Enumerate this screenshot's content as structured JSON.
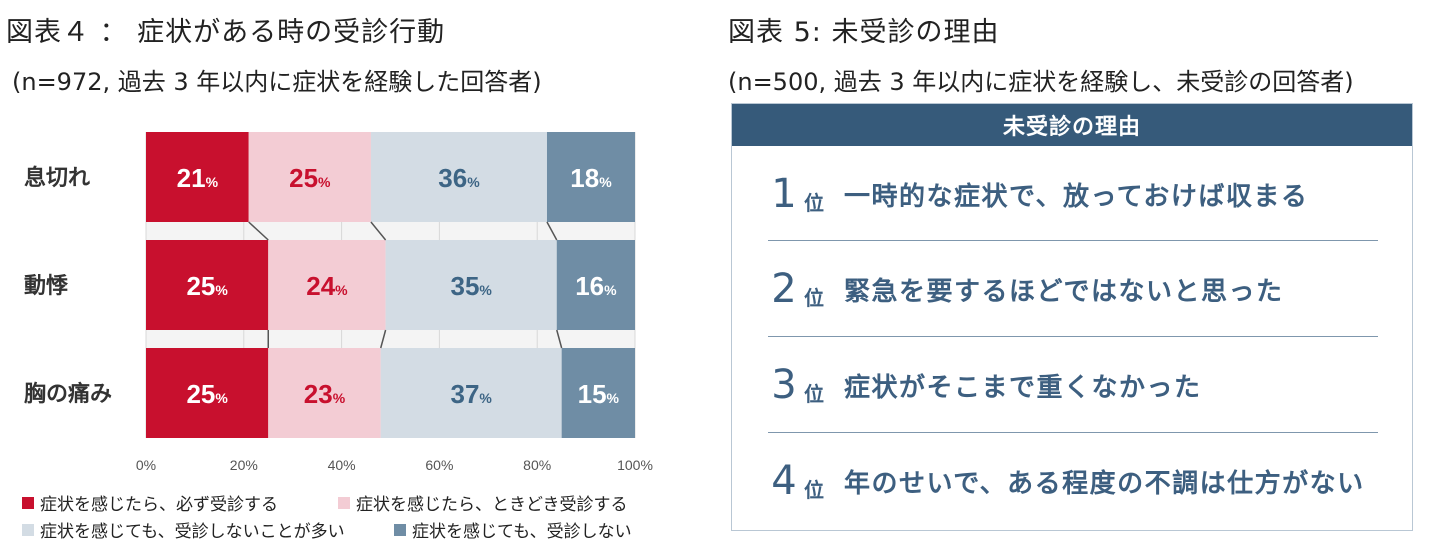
{
  "left": {
    "title": "図表４ ： 症状がある時の受診行動",
    "subtitle": "(n=972, 過去 3 年以内に症状を経験した回答者)"
  },
  "right": {
    "title": "図表 5: 未受診の理由",
    "subtitle": "(n=500, 過去 3 年以内に症状を経験し、未受診の回答者)",
    "table_header": "未受診の理由",
    "rank_unit": "位",
    "reasons": [
      {
        "rank": "1",
        "text": "一時的な症状で、放っておけば収まる"
      },
      {
        "rank": "2",
        "text": "緊急を要するほどではないと思った"
      },
      {
        "rank": "3",
        "text": "症状がそこまで重くなかった"
      },
      {
        "rank": "4",
        "text": "年のせいで、ある程度の不調は仕方がない"
      }
    ]
  },
  "colors": {
    "always": "#c8102e",
    "sometimes": "#f3ccd4",
    "often_not": "#d3dce4",
    "never": "#6f8da5",
    "label_red": "#c8102e",
    "label_blue": "#3d6585"
  },
  "chart_data": {
    "type": "bar",
    "orientation": "horizontal",
    "stacked": true,
    "categories": [
      "息切れ",
      "動悸",
      "胸の痛み"
    ],
    "series": [
      {
        "name": "症状を感じたら、必ず受診する",
        "values": [
          21,
          25,
          25
        ]
      },
      {
        "name": "症状を感じたら、ときどき受診する",
        "values": [
          25,
          24,
          23
        ]
      },
      {
        "name": "症状を感じても、受診しないことが多い",
        "values": [
          36,
          35,
          37
        ]
      },
      {
        "name": "症状を感じても、受診しない",
        "values": [
          18,
          16,
          15
        ]
      }
    ],
    "value_suffix": "%",
    "xlim": [
      0,
      100
    ],
    "xticks": [
      "0%",
      "20%",
      "40%",
      "60%",
      "80%",
      "100%"
    ],
    "grid": true,
    "legend_position": "bottom"
  }
}
